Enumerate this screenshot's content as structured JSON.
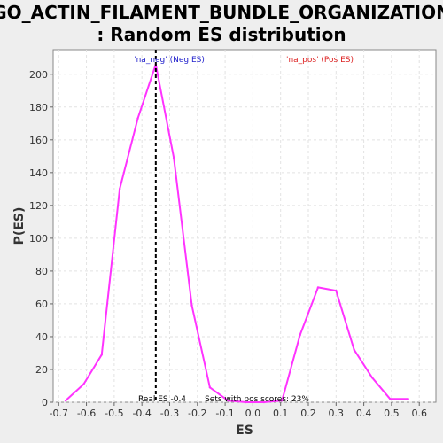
{
  "chart_data": {
    "type": "line",
    "title_line1": "GO_ACTIN_FILAMENT_BUNDLE_ORGANIZATION",
    "title_line2": ": Random ES distribution",
    "xlabel": "ES",
    "ylabel": "P(ES)",
    "xlim": [
      -0.72,
      0.66
    ],
    "ylim": [
      0,
      215
    ],
    "xticks": [
      -0.7,
      -0.6,
      -0.5,
      -0.4,
      -0.3,
      -0.2,
      -0.1,
      0.0,
      0.1,
      0.2,
      0.3,
      0.4,
      0.5,
      0.6
    ],
    "xtick_labels": [
      "-0.7",
      "-0.6",
      "-0.5",
      "-0.4",
      "-0.3",
      "-0.2",
      "-0.1",
      "0.0",
      "0.1",
      "0.2",
      "0.3",
      "0.4",
      "0.5",
      "0.6"
    ],
    "yticks": [
      0,
      20,
      40,
      60,
      80,
      100,
      120,
      140,
      160,
      180,
      200
    ],
    "ytick_labels": [
      "0",
      "20",
      "40",
      "60",
      "80",
      "100",
      "120",
      "140",
      "160",
      "180",
      "200"
    ],
    "grid": true,
    "series": [
      {
        "color": "#ff33ff",
        "x": [
          -0.675,
          -0.61,
          -0.545,
          -0.48,
          -0.415,
          -0.35,
          -0.285,
          -0.22,
          -0.155,
          -0.09,
          -0.025,
          0.04,
          0.105,
          0.17,
          0.235,
          0.3,
          0.365,
          0.43,
          0.495,
          0.56
        ],
        "y": [
          1,
          11,
          29,
          130,
          173,
          206,
          149,
          59,
          9,
          1,
          0,
          0,
          1,
          41,
          70,
          68,
          32,
          15,
          2,
          2
        ]
      }
    ],
    "real_es": -0.35,
    "real_es_color": "#000000",
    "annotations": {
      "neg_label": "'na_neg' (Neg ES)",
      "neg_color": "#2222cc",
      "pos_label": "'na_pos' (Pos ES)",
      "pos_color": "#dd2222",
      "real_es_text": "Real ES -0.4",
      "pos_sets_text": "Sets with pos scores: 23%"
    }
  }
}
